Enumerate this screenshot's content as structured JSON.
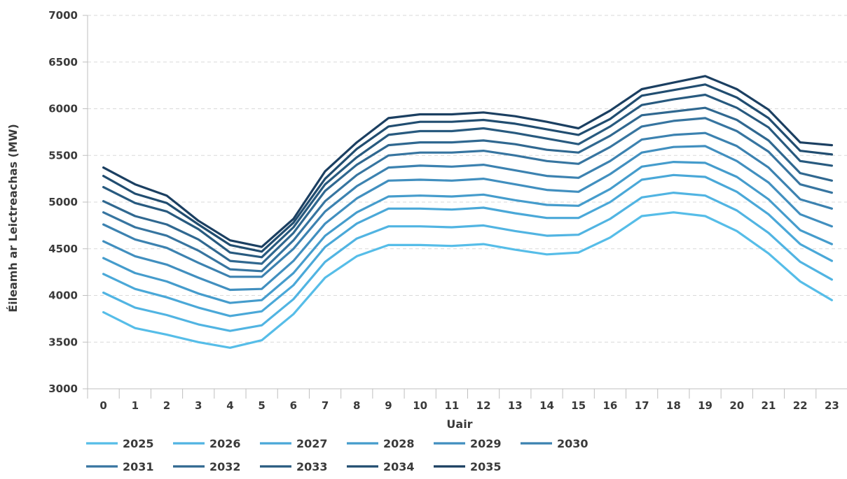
{
  "chart_data": {
    "type": "line",
    "xlabel": "Uair",
    "ylabel": "Éileamh ar Leictreachas (MW)",
    "ylim": [
      3000,
      7000
    ],
    "yticks": [
      3000,
      3500,
      4000,
      4500,
      5000,
      5500,
      6000,
      6500,
      7000
    ],
    "categories": [
      "0",
      "1",
      "2",
      "3",
      "4",
      "5",
      "6",
      "7",
      "8",
      "9",
      "10",
      "11",
      "12",
      "13",
      "14",
      "15",
      "16",
      "17",
      "18",
      "19",
      "20",
      "21",
      "22",
      "23"
    ],
    "grid": true,
    "legend_position": "bottom",
    "series": [
      {
        "name": "2025",
        "color": "#56bde8",
        "values": [
          3820,
          3650,
          3580,
          3500,
          3440,
          3520,
          3800,
          4190,
          4420,
          4540,
          4540,
          4530,
          4550,
          4490,
          4440,
          4460,
          4620,
          4850,
          4890,
          4850,
          4690,
          4450,
          4150,
          3950
        ]
      },
      {
        "name": "2026",
        "color": "#51b4e2",
        "values": [
          4030,
          3870,
          3790,
          3690,
          3620,
          3680,
          3960,
          4360,
          4610,
          4740,
          4740,
          4730,
          4750,
          4690,
          4640,
          4650,
          4820,
          5050,
          5100,
          5070,
          4910,
          4670,
          4360,
          4170
        ]
      },
      {
        "name": "2027",
        "color": "#4aa8d8",
        "values": [
          4230,
          4070,
          3980,
          3870,
          3780,
          3830,
          4110,
          4520,
          4770,
          4930,
          4930,
          4920,
          4940,
          4880,
          4830,
          4830,
          5000,
          5240,
          5290,
          5270,
          5110,
          4870,
          4550,
          4370
        ]
      },
      {
        "name": "2028",
        "color": "#459ccc",
        "values": [
          4400,
          4240,
          4150,
          4020,
          3920,
          3950,
          4240,
          4640,
          4890,
          5060,
          5070,
          5060,
          5080,
          5020,
          4970,
          4960,
          5140,
          5380,
          5430,
          5420,
          5270,
          5030,
          4700,
          4550
        ]
      },
      {
        "name": "2029",
        "color": "#418fbf",
        "values": [
          4580,
          4420,
          4330,
          4190,
          4060,
          4070,
          4370,
          4770,
          5040,
          5230,
          5240,
          5230,
          5250,
          5190,
          5130,
          5110,
          5300,
          5530,
          5590,
          5600,
          5440,
          5210,
          4870,
          4740
        ]
      },
      {
        "name": "2030",
        "color": "#3c82b0",
        "values": [
          4760,
          4600,
          4510,
          4350,
          4200,
          4200,
          4500,
          4900,
          5170,
          5370,
          5390,
          5380,
          5400,
          5340,
          5280,
          5260,
          5440,
          5670,
          5720,
          5740,
          5600,
          5370,
          5030,
          4930
        ]
      },
      {
        "name": "2031",
        "color": "#3775a0",
        "values": [
          4890,
          4730,
          4640,
          4480,
          4280,
          4260,
          4590,
          5010,
          5290,
          5500,
          5530,
          5530,
          5550,
          5500,
          5440,
          5410,
          5590,
          5810,
          5870,
          5900,
          5760,
          5540,
          5190,
          5100
        ]
      },
      {
        "name": "2032",
        "color": "#306890",
        "values": [
          5010,
          4850,
          4760,
          4600,
          4370,
          4340,
          4670,
          5120,
          5400,
          5610,
          5640,
          5640,
          5660,
          5620,
          5560,
          5530,
          5710,
          5930,
          5970,
          6010,
          5880,
          5660,
          5310,
          5230
        ]
      },
      {
        "name": "2033",
        "color": "#285a7f",
        "values": [
          5160,
          4990,
          4900,
          4710,
          4460,
          4410,
          4730,
          5190,
          5480,
          5720,
          5760,
          5760,
          5790,
          5740,
          5680,
          5620,
          5810,
          6040,
          6100,
          6150,
          6010,
          5800,
          5440,
          5390
        ]
      },
      {
        "name": "2034",
        "color": "#214d70",
        "values": [
          5280,
          5090,
          4990,
          4760,
          4540,
          4470,
          4780,
          5250,
          5570,
          5810,
          5860,
          5860,
          5880,
          5840,
          5780,
          5720,
          5890,
          6140,
          6200,
          6260,
          6120,
          5900,
          5550,
          5510
        ]
      },
      {
        "name": "2035",
        "color": "#1b3f61",
        "values": [
          5370,
          5190,
          5070,
          4800,
          4590,
          4520,
          4820,
          5330,
          5640,
          5900,
          5940,
          5940,
          5960,
          5920,
          5860,
          5790,
          5980,
          6210,
          6280,
          6350,
          6210,
          5990,
          5640,
          5610
        ]
      }
    ]
  }
}
